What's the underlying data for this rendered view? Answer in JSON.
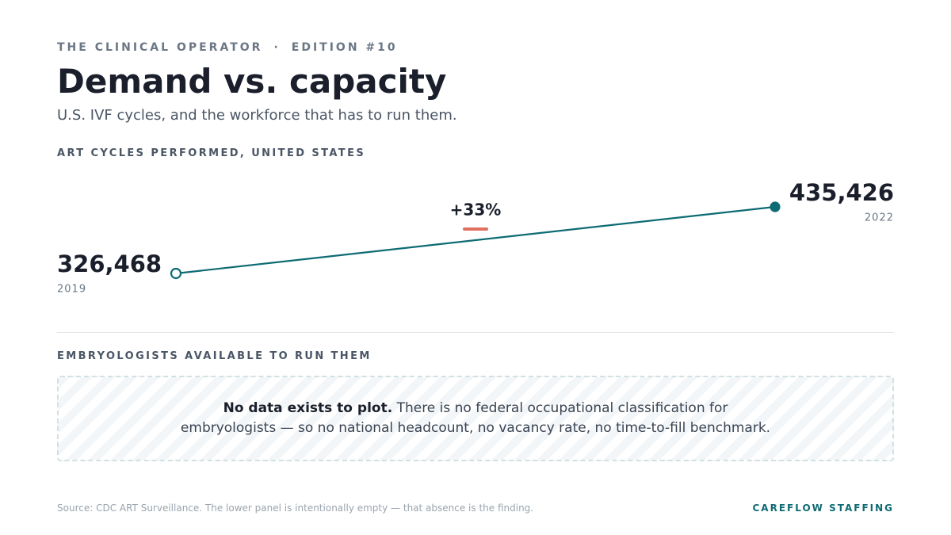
{
  "header": {
    "publication": "THE CLINICAL OPERATOR",
    "separator": "·",
    "edition": "EDITION #10",
    "title": "Demand vs. capacity",
    "subtitle": "U.S. IVF cycles, and the workforce that has to run them."
  },
  "chart_data": {
    "type": "line",
    "title": "ART CYCLES PERFORMED, UNITED STATES",
    "categories": [
      "2019",
      "2022"
    ],
    "values": [
      326468,
      435426
    ],
    "value_labels": [
      "326,468",
      "435,426"
    ],
    "color": "#0e6b73",
    "annotation": "+33%"
  },
  "empty_panel": {
    "title": "EMBRYOLOGISTS AVAILABLE TO RUN THEM",
    "lead": "No data exists to plot.",
    "text": "There is no federal occupational classification for embryologists — so no national headcount, no vacancy rate, no time-to-fill benchmark."
  },
  "footer": {
    "source": "Source: CDC ART Surveillance. The lower panel is intentionally empty — that absence is the finding.",
    "brand": "CAREFLOW STAFFING"
  }
}
